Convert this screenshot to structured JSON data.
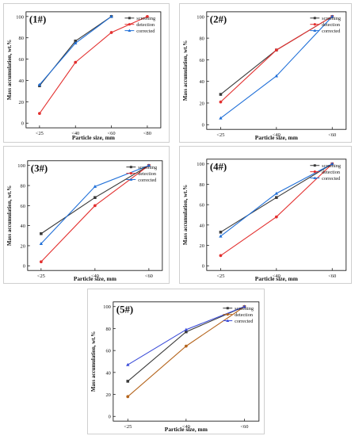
{
  "legend_labels": [
    "screening",
    "detection",
    "corrected"
  ],
  "colors": {
    "screening": "#3a3a3a",
    "detection": "#e3302f",
    "corrected": "#1f6fd8",
    "detection_p5": "#b5651d",
    "corrected_p5": "#3a4bd8",
    "axis": "#000000"
  },
  "chart_data": [
    {
      "type": "line",
      "title": "(1#)",
      "xlabel": "Particle size, mm",
      "ylabel": "Mass accumulation, wt.%",
      "categories": [
        "<25",
        "<40",
        "<60",
        "<80"
      ],
      "ylim": [
        0,
        100
      ],
      "yticks": [
        "0",
        "20",
        "40",
        "60",
        "80",
        "100"
      ],
      "series": [
        {
          "name": "screening",
          "values": [
            35,
            77,
            100,
            null
          ]
        },
        {
          "name": "detection",
          "values": [
            9,
            57,
            85,
            100
          ]
        },
        {
          "name": "corrected",
          "values": [
            36,
            75,
            100,
            null
          ]
        }
      ]
    },
    {
      "type": "line",
      "title": "(2#)",
      "xlabel": "Particle size, mm",
      "ylabel": "Mass accumulation, wt.%",
      "categories": [
        "<25",
        "<40",
        "<60"
      ],
      "ylim": [
        0,
        100
      ],
      "yticks": [
        "0",
        "20",
        "40",
        "60",
        "80",
        "100"
      ],
      "series": [
        {
          "name": "screening",
          "values": [
            28,
            69,
            100
          ]
        },
        {
          "name": "detection",
          "values": [
            21,
            69,
            100
          ]
        },
        {
          "name": "corrected",
          "values": [
            6,
            45,
            100
          ]
        }
      ]
    },
    {
      "type": "line",
      "title": "(3#)",
      "xlabel": "Particle size, mm",
      "ylabel": "Mass accumulation, wt.%",
      "categories": [
        "<25",
        "<40",
        "<60"
      ],
      "ylim": [
        0,
        100
      ],
      "yticks": [
        "0",
        "20",
        "40",
        "60",
        "80",
        "100"
      ],
      "series": [
        {
          "name": "screening",
          "values": [
            32,
            68,
            100
          ]
        },
        {
          "name": "detection",
          "values": [
            4,
            60,
            100
          ]
        },
        {
          "name": "corrected",
          "values": [
            22,
            79,
            100
          ]
        }
      ]
    },
    {
      "type": "line",
      "title": "(4#)",
      "xlabel": "Particle size, mm",
      "ylabel": "Mass accumulation, wt.%",
      "categories": [
        "<25",
        "<40",
        "<60"
      ],
      "ylim": [
        0,
        100
      ],
      "yticks": [
        "0",
        "20",
        "40",
        "60",
        "80",
        "100"
      ],
      "series": [
        {
          "name": "screening",
          "values": [
            33,
            67,
            100
          ]
        },
        {
          "name": "detection",
          "values": [
            10,
            48,
            100
          ]
        },
        {
          "name": "corrected",
          "values": [
            29,
            71,
            100
          ]
        }
      ]
    },
    {
      "type": "line",
      "title": "(5#)",
      "xlabel": "Particle size, mm",
      "ylabel": "Mass accumulation, wt.%",
      "categories": [
        "<25",
        "<40",
        "<60"
      ],
      "ylim": [
        0,
        100
      ],
      "yticks": [
        "0",
        "20",
        "40",
        "60",
        "80",
        "100"
      ],
      "series": [
        {
          "name": "screening",
          "values": [
            32,
            77,
            100
          ]
        },
        {
          "name": "detection",
          "values": [
            18,
            64,
            100
          ]
        },
        {
          "name": "corrected",
          "values": [
            47,
            79,
            100
          ]
        }
      ]
    }
  ]
}
